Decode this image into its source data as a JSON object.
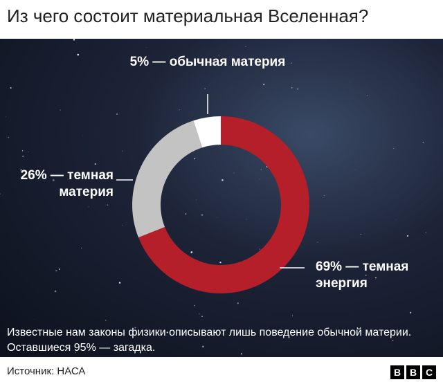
{
  "chart_data": {
    "type": "donut",
    "title": "Из чего состоит материальная Вселенная?",
    "values": [
      69,
      26,
      5
    ],
    "value_labels": [
      "69% — темная энергия",
      "26% — темная материя",
      "5% — обычная материя"
    ],
    "colors": [
      "#b51f29",
      "#c3c3c3",
      "#ffffff"
    ],
    "note": "Известные нам законы физики описывают лишь поведение обычной материи. Оставшиеся 95% — загадка.",
    "source": "Источник: НАСА",
    "logo": [
      "B",
      "B",
      "C"
    ]
  }
}
